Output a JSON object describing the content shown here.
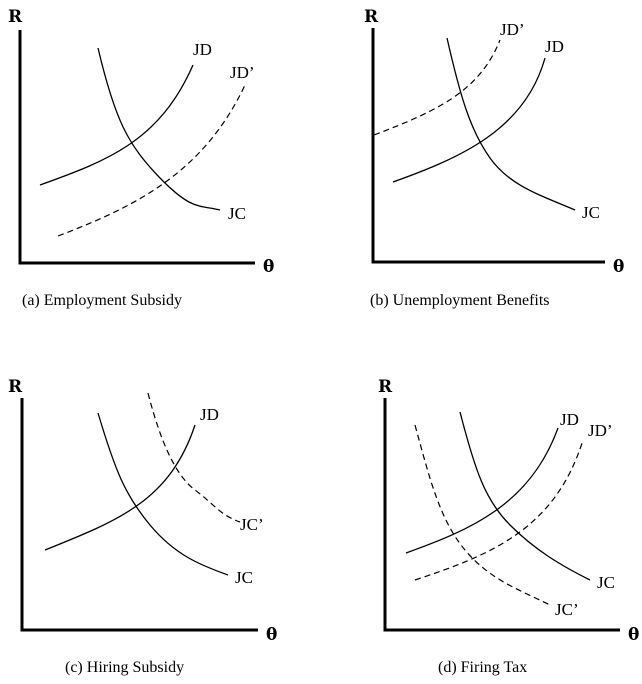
{
  "axes": {
    "y_label": "R",
    "x_label": "θ"
  },
  "panels": [
    {
      "caption": "(a) Employment Subsidy",
      "labels": [
        "JD",
        "JD’",
        "JC"
      ]
    },
    {
      "caption": "(b) Unemployment Benefits",
      "labels": [
        "JD’",
        "JD",
        "JC"
      ]
    },
    {
      "caption": "(c) Hiring Subsidy",
      "labels": [
        "JD",
        "JC’",
        "JC"
      ]
    },
    {
      "caption": "(d) Firing Tax",
      "labels": [
        "JD",
        "JD’",
        "JC",
        "JC’"
      ]
    }
  ]
}
